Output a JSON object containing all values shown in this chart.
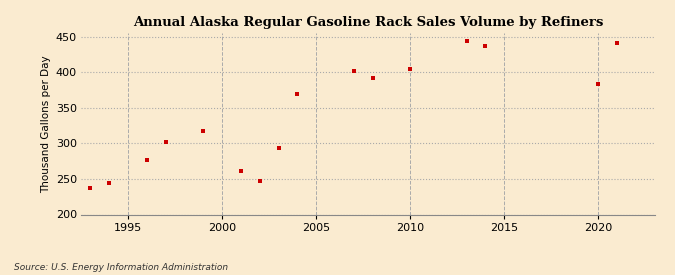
{
  "title": "Annual Alaska Regular Gasoline Rack Sales Volume by Refiners",
  "ylabel": "Thousand Gallons per Day",
  "source": "Source: U.S. Energy Information Administration",
  "background_color": "#faebd0",
  "plot_background_color": "#faebd0",
  "marker_color": "#cc0000",
  "grid_color": "#aaaaaa",
  "xlim": [
    1992.5,
    2023
  ],
  "ylim": [
    200,
    455
  ],
  "yticks": [
    200,
    250,
    300,
    350,
    400,
    450
  ],
  "xticks": [
    1995,
    2000,
    2005,
    2010,
    2015,
    2020
  ],
  "x": [
    1993,
    1994,
    1996,
    1997,
    1999,
    2001,
    2002,
    2003,
    2004,
    2007,
    2008,
    2010,
    2013,
    2014,
    2020,
    2021
  ],
  "y": [
    237,
    244,
    276,
    302,
    318,
    261,
    247,
    293,
    369,
    401,
    392,
    405,
    444,
    437,
    383,
    441
  ]
}
